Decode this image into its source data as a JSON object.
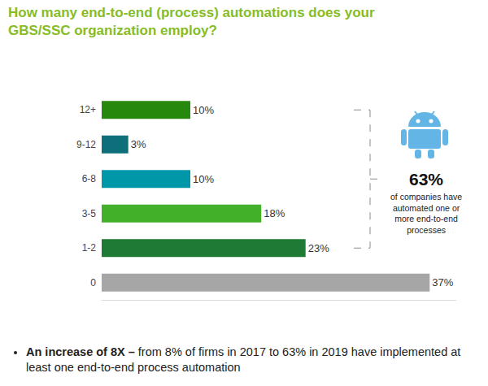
{
  "chart_data": {
    "type": "bar",
    "orientation": "horizontal",
    "title": "How many end-to-end (process) automations does your GBS/SSC organization employ?",
    "categories": [
      "12+",
      "9-12",
      "6-8",
      "3-5",
      "1-2",
      "0"
    ],
    "values": [
      10,
      3,
      10,
      18,
      23,
      37
    ],
    "value_labels": [
      "10%",
      "3%",
      "10%",
      "18%",
      "23%",
      "37%"
    ],
    "colors": [
      "#26890D",
      "#0D6F7A",
      "#0097A9",
      "#43B02A",
      "#1F7A35",
      "#A6A6A6"
    ],
    "data_labels": true,
    "tick_labels": "y",
    "grid": false,
    "xlim": [
      0,
      40
    ],
    "xticks": [],
    "annotations": [
      {
        "title": "63%",
        "text": "of companies have automated one or more end-to-end processes",
        "categories": [
          "12+",
          "1-2"
        ]
      }
    ],
    "footnote": {
      "bold": "An increase of 8X –",
      "text": "from 8% of firms in 2017 to 63% in 2019 have implemented at least one end-to-end process automation"
    }
  }
}
